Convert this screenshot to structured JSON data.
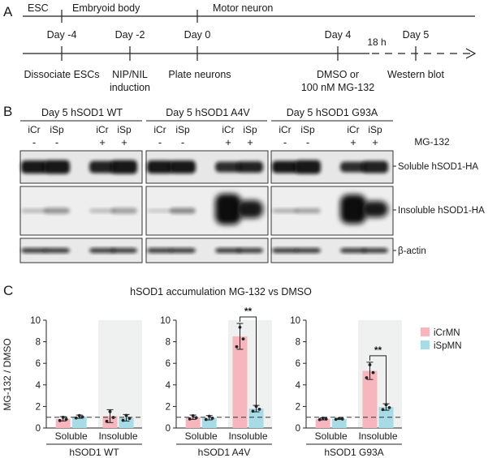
{
  "panel_a": {
    "letter": "A",
    "phases": [
      "ESC",
      "Embryoid body",
      "Motor neuron"
    ],
    "days": [
      "Day -4",
      "Day -2",
      "Day 0",
      "Day 4",
      "Day 5"
    ],
    "interval": "18 h",
    "events": {
      "dissociate": "Dissociate ESCs",
      "nip_line1": "NIP/NIL",
      "nip_line2": "induction",
      "plate": "Plate neurons",
      "dmso_line1": "DMSO or",
      "dmso_line2": "100 nM MG-132",
      "blot": "Western blot"
    }
  },
  "panel_b": {
    "letter": "B",
    "blot_titles": [
      "Day 5 hSOD1 WT",
      "Day 5 hSOD1 A4V",
      "Day 5 hSOD1 G93A"
    ],
    "lanes": [
      "iCr",
      "iSp",
      "iCr",
      "iSp"
    ],
    "treatment_signs": [
      "-",
      "-",
      "+",
      "+"
    ],
    "treatment_label": "MG-132",
    "row_labels": [
      "Soluble hSOD1-HA",
      "Insoluble hSOD1-HA",
      "β-actin"
    ]
  },
  "panel_c": {
    "letter": "C",
    "title": "hSOD1 accumulation MG-132 vs DMSO",
    "ylabel": "MG-132 / DMSO",
    "legend": [
      "iCrMN",
      "iSpMN"
    ],
    "colors": {
      "icr": "#f7b6bd",
      "isp": "#a7dbe6",
      "shade": "#eef1ef",
      "icr_dot": "#222222"
    },
    "significance": "**"
  },
  "chart_data": [
    {
      "type": "bar",
      "title": "",
      "xlabel": "hSOD1 WT",
      "ylabel": "MG-132 / DMSO",
      "ylim": [
        0,
        10
      ],
      "yticks": [
        0,
        2,
        4,
        6,
        8,
        10
      ],
      "categories": [
        "Soluble",
        "Insoluble"
      ],
      "series": [
        {
          "name": "iCrMN",
          "values": [
            0.85,
            1.1
          ],
          "errors": [
            0.2,
            0.6
          ]
        },
        {
          "name": "iSpMN",
          "values": [
            1.05,
            0.95
          ],
          "errors": [
            0.15,
            0.3
          ]
        }
      ],
      "reference_line": 1,
      "significant": false
    },
    {
      "type": "bar",
      "title": "",
      "xlabel": "hSOD1 A4V",
      "ylabel": "",
      "ylim": [
        0,
        10
      ],
      "yticks": [
        0,
        2,
        4,
        6,
        8,
        10
      ],
      "categories": [
        "Soluble",
        "Insoluble"
      ],
      "series": [
        {
          "name": "iCrMN",
          "values": [
            1.0,
            8.5
          ],
          "errors": [
            0.2,
            1.2
          ]
        },
        {
          "name": "iSpMN",
          "values": [
            0.95,
            1.8
          ],
          "errors": [
            0.2,
            0.3
          ]
        }
      ],
      "reference_line": 1,
      "significant": true
    },
    {
      "type": "bar",
      "title": "",
      "xlabel": "hSOD1 G93A",
      "ylabel": "",
      "ylim": [
        0,
        10
      ],
      "yticks": [
        0,
        2,
        4,
        6,
        8,
        10
      ],
      "categories": [
        "Soluble",
        "Insoluble"
      ],
      "series": [
        {
          "name": "iCrMN",
          "values": [
            0.85,
            5.3
          ],
          "errors": [
            0.1,
            0.8
          ]
        },
        {
          "name": "iSpMN",
          "values": [
            0.85,
            1.95
          ],
          "errors": [
            0.05,
            0.3
          ]
        }
      ],
      "reference_line": 1,
      "significant": true
    }
  ]
}
